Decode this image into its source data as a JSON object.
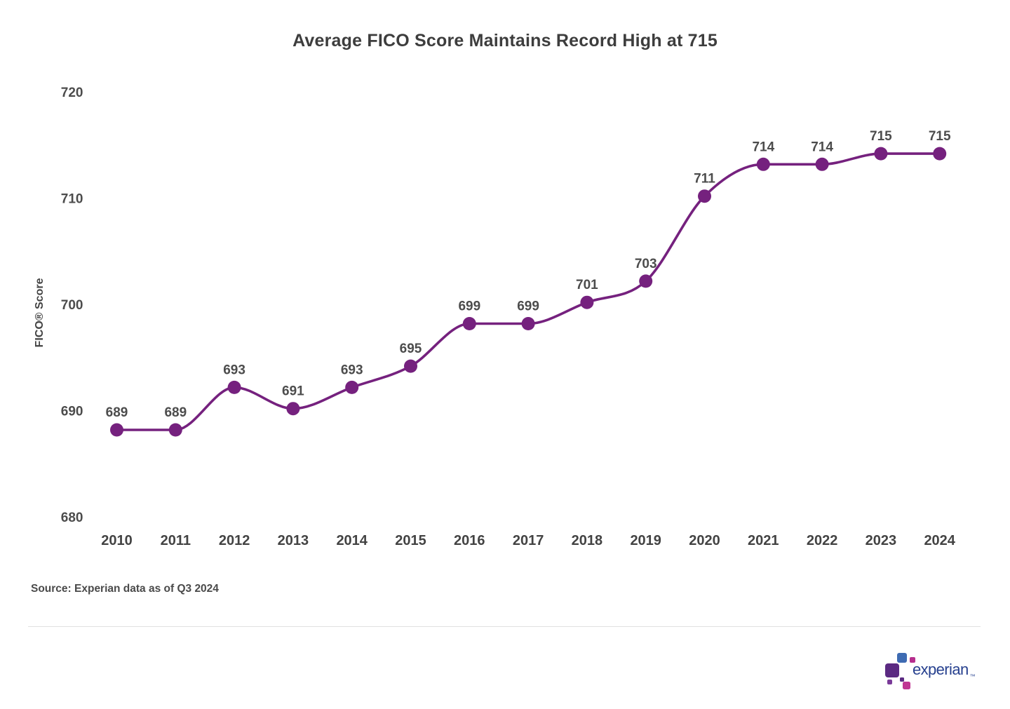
{
  "chart_data": {
    "type": "line",
    "title": "Average FICO Score Maintains Record High at 715",
    "x": [
      2010,
      2011,
      2012,
      2013,
      2014,
      2015,
      2016,
      2017,
      2018,
      2019,
      2020,
      2021,
      2022,
      2023,
      2024
    ],
    "series": [
      {
        "name": "Average FICO Score",
        "values": [
          689,
          689,
          693,
          691,
          693,
          695,
          699,
          699,
          701,
          703,
          711,
          714,
          714,
          715,
          715
        ]
      }
    ],
    "xlabel": "",
    "ylabel": "FICO® Score",
    "ylim": [
      680,
      720
    ],
    "yticks": [
      720,
      710,
      700,
      690,
      680
    ],
    "grid": false,
    "legend": "none",
    "point_labels": true,
    "curve": "monotone"
  },
  "colors": {
    "line": "#75217E",
    "point": "#75217E",
    "title_text": "#3d3d3d",
    "label_text": "#4c4c4c",
    "logo_blue": "#27418f",
    "logo_purple": "#5b2a82",
    "logo_pink": "#b62e8d"
  },
  "footer": {
    "source": "Source: Experian data as of Q3 2024",
    "logo_text": "experian",
    "trademark": "™"
  }
}
